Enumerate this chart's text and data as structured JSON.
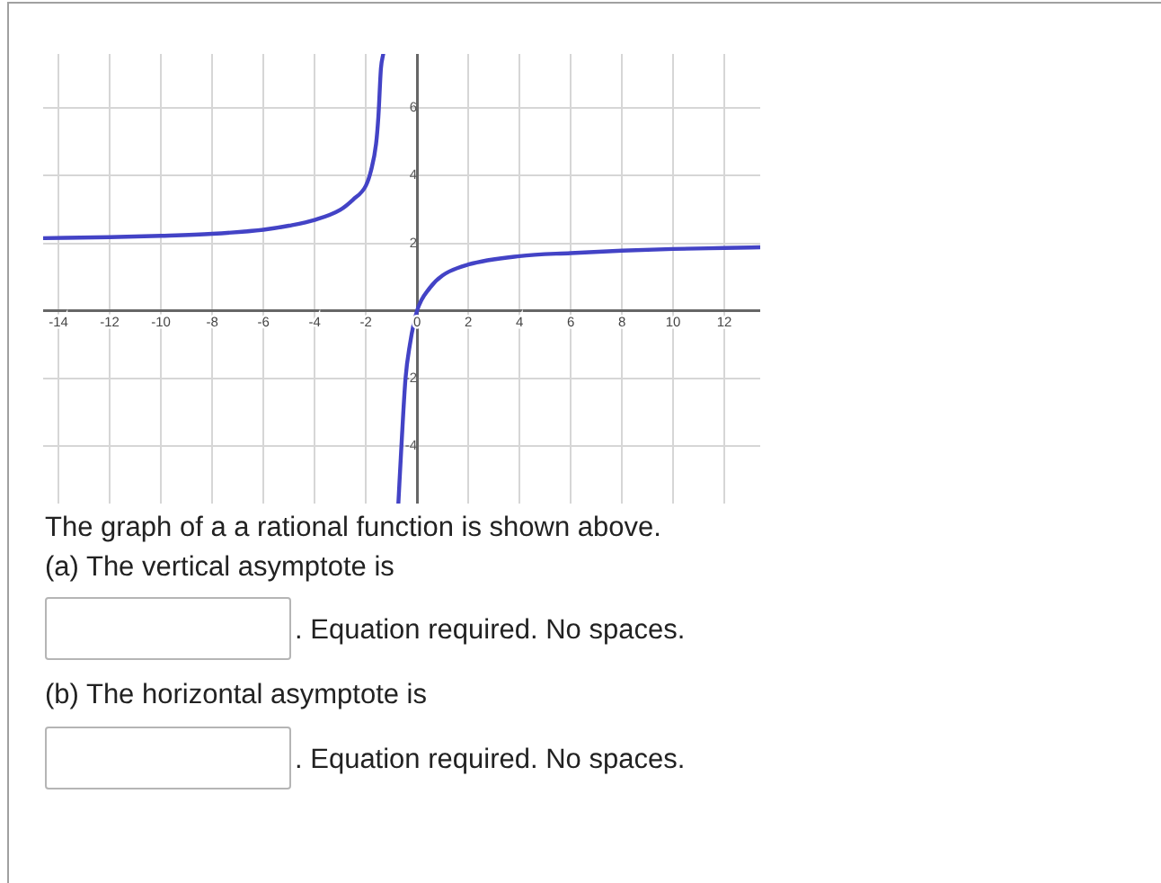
{
  "chart_data": {
    "type": "line",
    "series": [
      {
        "color": "#4343c6",
        "x": [
          -14.6,
          -12,
          -10,
          -8,
          -6,
          -5,
          -4,
          -3,
          -2.5,
          -2,
          -1.8,
          -1.6,
          -1.51,
          -1.41,
          -1.32
        ],
        "values": [
          2.15,
          2.18,
          2.22,
          2.28,
          2.4,
          2.52,
          2.69,
          2.99,
          3.29,
          3.7,
          4.14,
          4.94,
          5.74,
          7.17,
          7.6
        ]
      },
      {
        "color": "#4343c6",
        "x": [
          -0.73,
          -0.61,
          -0.45,
          -0.28,
          0,
          0.5,
          1,
          2,
          4,
          6,
          8,
          10,
          12,
          13.4
        ],
        "values": [
          -5.7,
          -4,
          -2,
          -1,
          0,
          0.68,
          1.05,
          1.37,
          1.62,
          1.71,
          1.78,
          1.83,
          1.86,
          1.88
        ]
      }
    ],
    "xlim": [
      -14.6,
      13.4
    ],
    "ylim": [
      -5.7,
      7.6
    ],
    "xticks": [
      -14,
      -12,
      -10,
      -8,
      -6,
      -4,
      -2,
      0,
      2,
      4,
      6,
      8,
      10,
      12
    ],
    "yticks": [
      -4,
      -2,
      2,
      4,
      6
    ],
    "grid": true,
    "legend": false,
    "marker": "none",
    "line_style": "solid",
    "annotations": [
      "The graph of a a rational function is shown above.",
      "(a) The vertical asymptote is",
      ". Equation required. No spaces.",
      "(b) The horizontal asymptote is",
      ". Equation required. No spaces."
    ]
  }
}
